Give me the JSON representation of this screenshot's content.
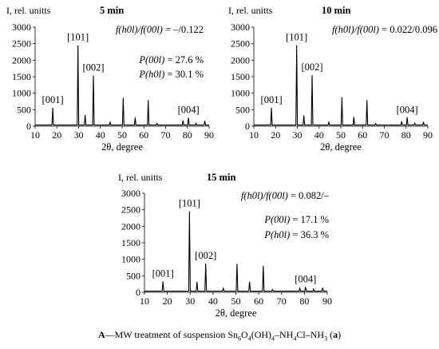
{
  "chart_data": [
    {
      "type": "line",
      "title": "5 min",
      "ylabel": "I, rel. unitts",
      "xlabel": "2θ, degree",
      "xlim": [
        10,
        90
      ],
      "ylim": [
        0,
        3000
      ],
      "xticks": [
        "10",
        "20",
        "30",
        "40",
        "50",
        "60",
        "70",
        "80",
        "90"
      ],
      "yticks": [
        "0",
        "500",
        "1000",
        "1500",
        "2000",
        "2500",
        "3000"
      ],
      "grid": false,
      "annotations": {
        "ratio_label": "f(h0l)/f(00l)",
        "ratio_value": " = –/0.122",
        "p00l_label": "P(00l)",
        "p00l_value": " = 27.6 %",
        "ph0l_label": "P(h0l)",
        "ph0l_value": " = 30.1 %"
      },
      "peak_labels": [
        {
          "text": "[001]",
          "x": 18.1,
          "y": 560
        },
        {
          "text": "[101]",
          "x": 29.7,
          "y": 2450
        },
        {
          "text": "[002]",
          "x": 36.8,
          "y": 1540
        },
        {
          "text": "[004]",
          "x": 80.5,
          "y": 260
        }
      ],
      "peaks": [
        {
          "x": 18.1,
          "y": 560
        },
        {
          "x": 29.7,
          "y": 2450
        },
        {
          "x": 33.0,
          "y": 340
        },
        {
          "x": 36.8,
          "y": 1540
        },
        {
          "x": 44.5,
          "y": 120
        },
        {
          "x": 50.5,
          "y": 860
        },
        {
          "x": 56.0,
          "y": 260
        },
        {
          "x": 62.0,
          "y": 790
        },
        {
          "x": 66.0,
          "y": 80
        },
        {
          "x": 78.0,
          "y": 170
        },
        {
          "x": 80.5,
          "y": 260
        },
        {
          "x": 84.0,
          "y": 90
        },
        {
          "x": 88.0,
          "y": 160
        }
      ]
    },
    {
      "type": "line",
      "title": "10 min",
      "ylabel": "I, rel. unitts",
      "xlabel": "2θ, degree",
      "xlim": [
        10,
        90
      ],
      "ylim": [
        0,
        3000
      ],
      "xticks": [
        "10",
        "20",
        "30",
        "40",
        "50",
        "60",
        "70",
        "80",
        "90"
      ],
      "yticks": [
        "0",
        "500",
        "1000",
        "1500",
        "2000",
        "2500",
        "3000"
      ],
      "grid": false,
      "annotations": {
        "ratio_label": "f(h0l)/f(00l)",
        "ratio_value": " = 0.022/0.096",
        "p00l_label": "",
        "p00l_value": "",
        "ph0l_label": "",
        "ph0l_value": ""
      },
      "peak_labels": [
        {
          "text": "[001]",
          "x": 18.1,
          "y": 560
        },
        {
          "text": "[101]",
          "x": 29.7,
          "y": 2450
        },
        {
          "text": "[002]",
          "x": 36.8,
          "y": 1550
        },
        {
          "text": "[004]",
          "x": 80.5,
          "y": 260
        }
      ],
      "peaks": [
        {
          "x": 18.1,
          "y": 560
        },
        {
          "x": 29.7,
          "y": 2450
        },
        {
          "x": 33.0,
          "y": 330
        },
        {
          "x": 36.8,
          "y": 1550
        },
        {
          "x": 44.5,
          "y": 120
        },
        {
          "x": 50.5,
          "y": 880
        },
        {
          "x": 56.0,
          "y": 280
        },
        {
          "x": 62.0,
          "y": 790
        },
        {
          "x": 66.0,
          "y": 80
        },
        {
          "x": 78.0,
          "y": 150
        },
        {
          "x": 80.5,
          "y": 270
        },
        {
          "x": 84.0,
          "y": 90
        },
        {
          "x": 88.0,
          "y": 130
        }
      ]
    },
    {
      "type": "line",
      "title": "15 min",
      "ylabel": "I, rel. unitts",
      "xlabel": "2θ, degree",
      "xlim": [
        10,
        90
      ],
      "ylim": [
        0,
        3000
      ],
      "xticks": [
        "10",
        "20",
        "30",
        "40",
        "50",
        "60",
        "70",
        "80",
        "90"
      ],
      "yticks": [
        "0",
        "500",
        "1000",
        "1500",
        "2000",
        "2500",
        "3000"
      ],
      "grid": false,
      "annotations": {
        "ratio_label": "f(h0l)/f(00l)",
        "ratio_value": " = 0.082/–",
        "p00l_label": "P(00l)",
        "p00l_value": " = 17.1 %",
        "ph0l_label": "P(h0l)",
        "ph0l_value": " = 36.3 %"
      },
      "peak_labels": [
        {
          "text": "[001]",
          "x": 18.1,
          "y": 330
        },
        {
          "text": "[101]",
          "x": 29.7,
          "y": 2450
        },
        {
          "text": "[002]",
          "x": 36.8,
          "y": 870
        },
        {
          "text": "[004]",
          "x": 80.5,
          "y": 160
        }
      ],
      "peaks": [
        {
          "x": 18.1,
          "y": 330
        },
        {
          "x": 29.7,
          "y": 2450
        },
        {
          "x": 33.0,
          "y": 320
        },
        {
          "x": 36.8,
          "y": 870
        },
        {
          "x": 44.5,
          "y": 120
        },
        {
          "x": 50.5,
          "y": 860
        },
        {
          "x": 56.0,
          "y": 320
        },
        {
          "x": 62.0,
          "y": 800
        },
        {
          "x": 66.0,
          "y": 80
        },
        {
          "x": 78.0,
          "y": 120
        },
        {
          "x": 80.5,
          "y": 160
        },
        {
          "x": 84.0,
          "y": 100
        },
        {
          "x": 88.0,
          "y": 140
        }
      ]
    }
  ],
  "caption": {
    "label": "A",
    "text": "—MW treatment of suspension Sn",
    "f1": "6",
    "f2": "O",
    "f3": "4",
    "f4": "(OH)",
    "f5": "4",
    "f6": "–NH",
    "f7": "4",
    "f8": "Cl–NH",
    "f9": "3",
    "f10": " (",
    "f11": "a",
    "f12": ")"
  }
}
